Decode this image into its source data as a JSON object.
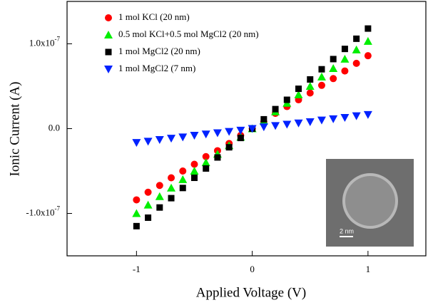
{
  "chart_data": {
    "type": "scatter",
    "xlabel": "Applied Voltage (V)",
    "ylabel": "Ionic Current (A)",
    "x": [
      -1,
      -0.9,
      -0.8,
      -0.7,
      -0.6,
      -0.5,
      -0.4,
      -0.3,
      -0.2,
      -0.1,
      0,
      0.1,
      0.2,
      0.3,
      0.4,
      0.5,
      0.6,
      0.7,
      0.8,
      0.9,
      1
    ],
    "series": [
      {
        "name": "1 mol KCl    (20 nm)",
        "color": "#ff0000",
        "marker": "circle",
        "values": [
          -8.4e-08,
          -7.5e-08,
          -6.7e-08,
          -5.8e-08,
          -5e-08,
          -4.2e-08,
          -3.3e-08,
          -2.6e-08,
          -1.75e-08,
          -8e-09,
          0,
          8e-09,
          1.8e-08,
          2.6e-08,
          3.4e-08,
          4.2e-08,
          5.1e-08,
          5.9e-08,
          6.8e-08,
          7.7e-08,
          8.6e-08
        ]
      },
      {
        "name": "0.5 mol KCl+0.5 mol MgCl2 (20 nm)",
        "color": "#00ee00",
        "marker": "triangle-up",
        "values": [
          -1e-07,
          -9e-08,
          -8e-08,
          -7e-08,
          -6e-08,
          -5e-08,
          -4e-08,
          -3e-08,
          -2e-08,
          -1e-08,
          0,
          9e-09,
          2e-08,
          3e-08,
          4e-08,
          5e-08,
          6.1e-08,
          7.1e-08,
          8.2e-08,
          9.3e-08,
          1.03e-07
        ]
      },
      {
        "name": "1 mol MgCl2 (20 nm)",
        "color": "#000000",
        "marker": "square",
        "values": [
          -1.15e-07,
          -1.05e-07,
          -9.3e-08,
          -8.2e-08,
          -7e-08,
          -5.8e-08,
          -4.7e-08,
          -3.4e-08,
          -2.2e-08,
          -1.1e-08,
          0,
          1.1e-08,
          2.3e-08,
          3.4e-08,
          4.7e-08,
          5.8e-08,
          7e-08,
          8.2e-08,
          9.4e-08,
          1.06e-07,
          1.18e-07
        ]
      },
      {
        "name": "1 mol MgCl2 (7 nm)",
        "color": "#0022ff",
        "marker": "triangle-down",
        "values": [
          -1.65e-08,
          -1.5e-08,
          -1.3e-08,
          -1.15e-08,
          -1e-08,
          -8e-09,
          -6.5e-09,
          -5e-09,
          -3.5e-09,
          -2e-09,
          0,
          2e-09,
          3.5e-09,
          5e-09,
          6.5e-09,
          8e-09,
          1e-08,
          1.15e-08,
          1.3e-08,
          1.5e-08,
          1.65e-08
        ]
      }
    ],
    "xlim": [
      -1.6,
      1.5
    ],
    "xticks": [
      -1,
      0,
      1
    ],
    "ylim": [
      -1.5e-07,
      1.5e-07
    ],
    "yticks": [
      {
        "value": -1e-07,
        "label": "-1.0x10",
        "exponent": "-7"
      },
      {
        "value": 0,
        "label": "0.0"
      },
      {
        "value": 1e-07,
        "label": "1.0x10",
        "exponent": "-7"
      }
    ],
    "annotations": [
      "2 nm"
    ]
  }
}
